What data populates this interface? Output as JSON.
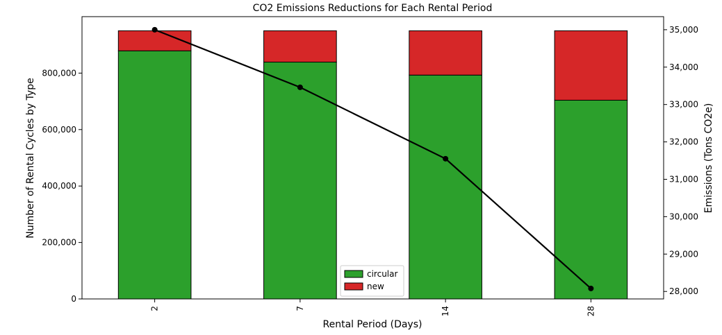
{
  "chart_data": {
    "type": "bar",
    "title": "CO2 Emissions Reductions for Each Rental Period",
    "xlabel": "Rental Period (Days)",
    "ylabel": "Number of Rental Cycles by Type",
    "y2label": "Emissions (Tons CO2e)",
    "categories": [
      "2",
      "7",
      "14",
      "28"
    ],
    "stacked": true,
    "ylim": [
      0,
      1000000
    ],
    "yticks": [
      0,
      200000,
      400000,
      600000,
      800000
    ],
    "ytick_labels": [
      "0",
      "200,000",
      "400,000",
      "600,000",
      "800,000"
    ],
    "y2lim": [
      27800,
      35350
    ],
    "y2ticks": [
      28000,
      29000,
      30000,
      31000,
      32000,
      33000,
      34000,
      35000
    ],
    "y2tick_labels": [
      "28,000",
      "29,000",
      "30,000",
      "31,000",
      "32,000",
      "33,000",
      "34,000",
      "35,000"
    ],
    "series": [
      {
        "name": "circular",
        "type": "bar",
        "color": "#2ca02c",
        "values": [
          879000,
          839000,
          793000,
          704000
        ]
      },
      {
        "name": "new",
        "type": "bar",
        "color": "#d62728",
        "values": [
          71000,
          111000,
          157000,
          246000
        ]
      },
      {
        "type": "line",
        "axis": "right",
        "color": "#000000",
        "values": [
          35000,
          33460,
          31550,
          28080
        ]
      }
    ],
    "legend_position": "bottom-center",
    "grid": false
  }
}
